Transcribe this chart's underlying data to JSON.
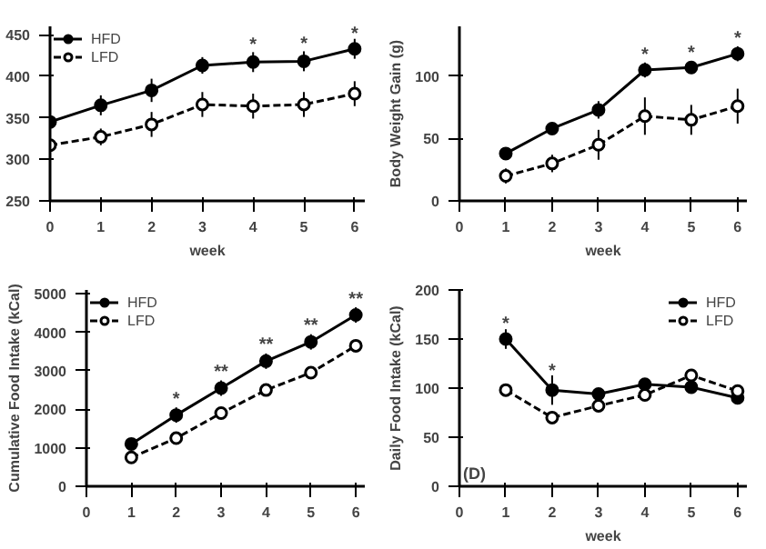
{
  "chart_data": [
    {
      "type": "line",
      "xlabel": "week",
      "x": [
        0,
        1,
        2,
        3,
        4,
        5,
        6
      ],
      "xlim": [
        0,
        6.2
      ],
      "xticks": [
        0,
        1,
        2,
        3,
        4,
        5,
        6
      ],
      "ylim": [
        250,
        460
      ],
      "yticks": [
        250,
        300,
        350,
        400,
        450
      ],
      "grid": false,
      "legend": "top left",
      "marker": "circle",
      "series": [
        {
          "name": "HFD",
          "color": "#000000",
          "line_style": "solid",
          "values": [
            345,
            365,
            383,
            413,
            417,
            418,
            433
          ],
          "errors": [
            8,
            12,
            14,
            10,
            12,
            12,
            12
          ]
        },
        {
          "name": "LFD",
          "color": "#000000",
          "line_style": "dashed",
          "values": [
            317,
            327,
            342,
            366,
            364,
            366,
            379
          ],
          "errors": [
            8,
            10,
            15,
            15,
            15,
            15,
            15
          ]
        }
      ],
      "annotations": [
        {
          "text": "*",
          "x": 4,
          "y": 437
        },
        {
          "text": "*",
          "x": 5,
          "y": 438
        },
        {
          "text": "*",
          "x": 6,
          "y": 450
        }
      ]
    },
    {
      "type": "line",
      "xlabel": "week",
      "ylabel": "Body Weight Gain (g)",
      "x": [
        1,
        2,
        3,
        4,
        5,
        6
      ],
      "xlim": [
        0,
        6.2
      ],
      "xticks": [
        0,
        1,
        2,
        3,
        4,
        5,
        6
      ],
      "ylim": [
        0,
        140
      ],
      "yticks": [
        0,
        50,
        100
      ],
      "grid": false,
      "marker": "circle",
      "series": [
        {
          "color": "#000000",
          "line_style": "solid",
          "values": [
            38,
            58,
            73,
            105,
            107,
            118
          ],
          "errors": [
            3,
            4,
            7,
            6,
            5,
            6
          ]
        },
        {
          "color": "#000000",
          "line_style": "dashed",
          "values": [
            20,
            30,
            45,
            68,
            65,
            76
          ],
          "errors": [
            6,
            7,
            12,
            15,
            12,
            14
          ]
        }
      ],
      "annotations": [
        {
          "text": "*",
          "x": 4,
          "y": 117
        },
        {
          "text": "*",
          "x": 5,
          "y": 118
        },
        {
          "text": "*",
          "x": 6,
          "y": 130
        }
      ]
    },
    {
      "type": "line",
      "ylabel": "Cumulative Food Intake (kCal)",
      "x": [
        1,
        2,
        3,
        4,
        5,
        6
      ],
      "xlim": [
        0,
        6.2
      ],
      "xticks": [
        0,
        1,
        2,
        3,
        4,
        5,
        6
      ],
      "ylim": [
        0,
        5100
      ],
      "yticks": [
        0,
        1000,
        2000,
        3000,
        4000,
        5000
      ],
      "grid": false,
      "legend": "top left",
      "marker": "circle",
      "series": [
        {
          "name": "HFD",
          "color": "#000000",
          "line_style": "solid",
          "values": [
            1100,
            1850,
            2550,
            3250,
            3750,
            4450
          ],
          "errors": [
            100,
            200,
            200,
            200,
            200,
            200
          ]
        },
        {
          "name": "LFD",
          "color": "#000000",
          "line_style": "dashed",
          "values": [
            750,
            1250,
            1900,
            2500,
            2950,
            3650
          ],
          "errors": [
            100,
            100,
            100,
            100,
            100,
            100
          ]
        }
      ],
      "annotations": [
        {
          "text": "*",
          "x": 2,
          "y": 2250
        },
        {
          "text": "**",
          "x": 3,
          "y": 2950
        },
        {
          "text": "**",
          "x": 4,
          "y": 3650
        },
        {
          "text": "**",
          "x": 5,
          "y": 4150
        },
        {
          "text": "**",
          "x": 6,
          "y": 4850
        }
      ]
    },
    {
      "type": "line",
      "xlabel": "week",
      "ylabel": "Daily Food Intake (kCal)",
      "x": [
        1,
        2,
        3,
        4,
        5,
        6
      ],
      "xlim": [
        0,
        6.2
      ],
      "xticks": [
        0,
        1,
        2,
        3,
        4,
        5,
        6
      ],
      "ylim": [
        0,
        200
      ],
      "yticks": [
        0,
        50,
        100,
        150,
        200
      ],
      "grid": false,
      "legend": "top right",
      "marker": "circle",
      "series": [
        {
          "name": "HFD",
          "color": "#000000",
          "line_style": "solid",
          "values": [
            150,
            98,
            94,
            104,
            101,
            90
          ],
          "errors": [
            10,
            15,
            5,
            5,
            5,
            5
          ]
        },
        {
          "name": "LFD",
          "color": "#000000",
          "line_style": "dashed",
          "values": [
            98,
            70,
            82,
            93,
            113,
            97
          ],
          "errors": [
            5,
            5,
            5,
            5,
            5,
            5
          ]
        }
      ],
      "annotations": [
        {
          "text": "*",
          "x": 1,
          "y": 165
        },
        {
          "text": "*",
          "x": 2,
          "y": 117
        },
        "(D)"
      ]
    }
  ]
}
